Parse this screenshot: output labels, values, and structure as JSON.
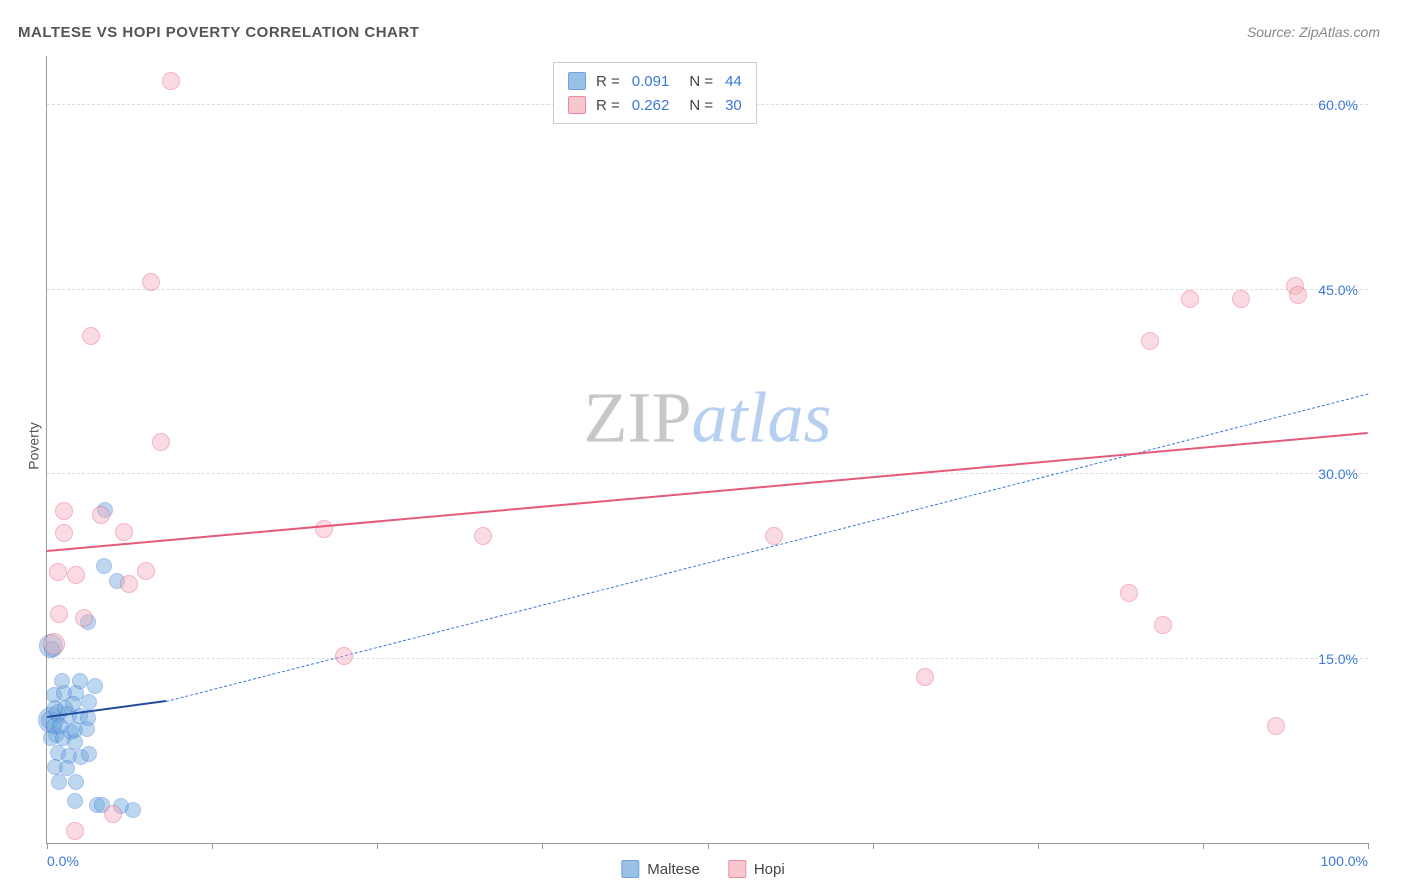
{
  "title": "MALTESE VS HOPI POVERTY CORRELATION CHART",
  "source_label": "Source: ZipAtlas.com",
  "ylabel": "Poverty",
  "watermark": {
    "part1": "ZIP",
    "part2": "atlas"
  },
  "chart": {
    "type": "scatter",
    "background_color": "#ffffff",
    "grid_color": "#dddddd",
    "axis_color": "#999999",
    "label_color": "#555555",
    "value_color": "#3b78d8",
    "xlim": [
      0,
      100
    ],
    "ylim": [
      0,
      64
    ],
    "yticks": [
      15,
      30,
      45,
      60
    ],
    "ytick_labels": [
      "15.0%",
      "30.0%",
      "45.0%",
      "60.0%"
    ],
    "xticks": [
      0,
      12.5,
      25,
      37.5,
      50,
      62.5,
      75,
      87.5,
      100
    ],
    "xtick_labels": {
      "0": "0.0%",
      "100": "100.0%"
    },
    "title_fontsize": 15,
    "label_fontsize": 14,
    "series": [
      {
        "name": "Maltese",
        "fill_color": "#6fa8dc",
        "fill_opacity": 0.45,
        "stroke_color": "#3b78d8",
        "marker_radius": 8,
        "R": "0.091",
        "N": "44",
        "trend": {
          "x1": 0,
          "y1": 10.2,
          "x2": 9,
          "y2": 11.5,
          "color": "#1f4e9c",
          "width": 2.5,
          "style": "solid"
        },
        "trend_ext": {
          "x1": 9,
          "y1": 11.5,
          "x2": 100,
          "y2": 36.5,
          "color": "#3b78d8",
          "width": 1.5,
          "style": "dashed"
        },
        "points": [
          {
            "x": 0.3,
            "y": 10.0,
            "r": 13
          },
          {
            "x": 0.3,
            "y": 16.0,
            "r": 12
          },
          {
            "x": 0.4,
            "y": 15.8,
            "r": 8
          },
          {
            "x": 0.2,
            "y": 10.0,
            "r": 9
          },
          {
            "x": 0.8,
            "y": 10.6,
            "r": 9
          },
          {
            "x": 1.6,
            "y": 10.4,
            "r": 9
          },
          {
            "x": 2.5,
            "y": 10.3,
            "r": 8
          },
          {
            "x": 1.8,
            "y": 9.0,
            "r": 8
          },
          {
            "x": 0.7,
            "y": 8.8,
            "r": 8
          },
          {
            "x": 0.3,
            "y": 8.5,
            "r": 8
          },
          {
            "x": 1.2,
            "y": 8.5,
            "r": 8
          },
          {
            "x": 2.1,
            "y": 8.2,
            "r": 8
          },
          {
            "x": 0.5,
            "y": 12.0,
            "r": 8
          },
          {
            "x": 1.3,
            "y": 12.2,
            "r": 8
          },
          {
            "x": 2.2,
            "y": 12.2,
            "r": 8
          },
          {
            "x": 3.2,
            "y": 11.5,
            "r": 8
          },
          {
            "x": 3.6,
            "y": 12.8,
            "r": 8
          },
          {
            "x": 1.1,
            "y": 13.2,
            "r": 8
          },
          {
            "x": 2.5,
            "y": 13.2,
            "r": 8
          },
          {
            "x": 0.6,
            "y": 11.0,
            "r": 8
          },
          {
            "x": 1.4,
            "y": 11.0,
            "r": 8
          },
          {
            "x": 2.0,
            "y": 11.3,
            "r": 8
          },
          {
            "x": 0.5,
            "y": 9.5,
            "r": 8
          },
          {
            "x": 1.0,
            "y": 9.5,
            "r": 8
          },
          {
            "x": 2.1,
            "y": 9.2,
            "r": 8
          },
          {
            "x": 3.0,
            "y": 9.3,
            "r": 8
          },
          {
            "x": 3.1,
            "y": 10.2,
            "r": 8
          },
          {
            "x": 0.8,
            "y": 7.3,
            "r": 8
          },
          {
            "x": 1.7,
            "y": 7.1,
            "r": 8
          },
          {
            "x": 2.6,
            "y": 7.0,
            "r": 8
          },
          {
            "x": 3.2,
            "y": 7.2,
            "r": 8
          },
          {
            "x": 0.6,
            "y": 6.2,
            "r": 8
          },
          {
            "x": 1.5,
            "y": 6.1,
            "r": 8
          },
          {
            "x": 0.9,
            "y": 5.0,
            "r": 8
          },
          {
            "x": 2.2,
            "y": 5.0,
            "r": 8
          },
          {
            "x": 2.1,
            "y": 3.4,
            "r": 8
          },
          {
            "x": 3.8,
            "y": 3.1,
            "r": 8
          },
          {
            "x": 4.2,
            "y": 3.1,
            "r": 8
          },
          {
            "x": 5.6,
            "y": 3.0,
            "r": 8
          },
          {
            "x": 6.5,
            "y": 2.7,
            "r": 8
          },
          {
            "x": 3.1,
            "y": 18.0,
            "r": 8
          },
          {
            "x": 5.3,
            "y": 21.3,
            "r": 8
          },
          {
            "x": 4.3,
            "y": 22.5,
            "r": 8
          },
          {
            "x": 4.4,
            "y": 27.1,
            "r": 8
          }
        ]
      },
      {
        "name": "Hopi",
        "fill_color": "#f4b0bd",
        "fill_opacity": 0.45,
        "stroke_color": "#e55a7a",
        "marker_radius": 9,
        "R": "0.262",
        "N": "30",
        "trend": {
          "x1": 0,
          "y1": 23.7,
          "x2": 100,
          "y2": 33.3,
          "color": "#e55a7a",
          "width": 2.5,
          "style": "solid"
        },
        "points": [
          {
            "x": 9.4,
            "y": 62.0,
            "r": 9
          },
          {
            "x": 7.9,
            "y": 45.6,
            "r": 9
          },
          {
            "x": 3.3,
            "y": 41.2,
            "r": 9
          },
          {
            "x": 8.6,
            "y": 32.6,
            "r": 9
          },
          {
            "x": 1.3,
            "y": 27.0,
            "r": 9
          },
          {
            "x": 4.1,
            "y": 26.7,
            "r": 9
          },
          {
            "x": 1.3,
            "y": 25.2,
            "r": 9
          },
          {
            "x": 5.8,
            "y": 25.3,
            "r": 9
          },
          {
            "x": 21.0,
            "y": 25.5,
            "r": 9
          },
          {
            "x": 33.0,
            "y": 25.0,
            "r": 9
          },
          {
            "x": 0.8,
            "y": 22.0,
            "r": 9
          },
          {
            "x": 2.2,
            "y": 21.8,
            "r": 9
          },
          {
            "x": 7.5,
            "y": 22.1,
            "r": 9
          },
          {
            "x": 0.9,
            "y": 18.6,
            "r": 9
          },
          {
            "x": 2.8,
            "y": 18.3,
            "r": 9
          },
          {
            "x": 0.5,
            "y": 16.2,
            "r": 11
          },
          {
            "x": 22.5,
            "y": 15.2,
            "r": 9
          },
          {
            "x": 55.0,
            "y": 25.0,
            "r": 9
          },
          {
            "x": 66.5,
            "y": 13.5,
            "r": 9
          },
          {
            "x": 81.9,
            "y": 20.3,
            "r": 9
          },
          {
            "x": 84.5,
            "y": 17.7,
            "r": 9
          },
          {
            "x": 93.0,
            "y": 9.5,
            "r": 9
          },
          {
            "x": 83.5,
            "y": 40.8,
            "r": 9
          },
          {
            "x": 86.5,
            "y": 44.2,
            "r": 9
          },
          {
            "x": 90.4,
            "y": 44.2,
            "r": 9
          },
          {
            "x": 94.5,
            "y": 45.3,
            "r": 9
          },
          {
            "x": 94.7,
            "y": 44.6,
            "r": 9
          },
          {
            "x": 6.2,
            "y": 21.1,
            "r": 9
          },
          {
            "x": 5.0,
            "y": 2.4,
            "r": 9
          },
          {
            "x": 2.1,
            "y": 1.0,
            "r": 9
          }
        ]
      }
    ]
  },
  "legend_bottom": [
    {
      "label": "Maltese",
      "series": 0
    },
    {
      "label": "Hopi",
      "series": 1
    }
  ]
}
